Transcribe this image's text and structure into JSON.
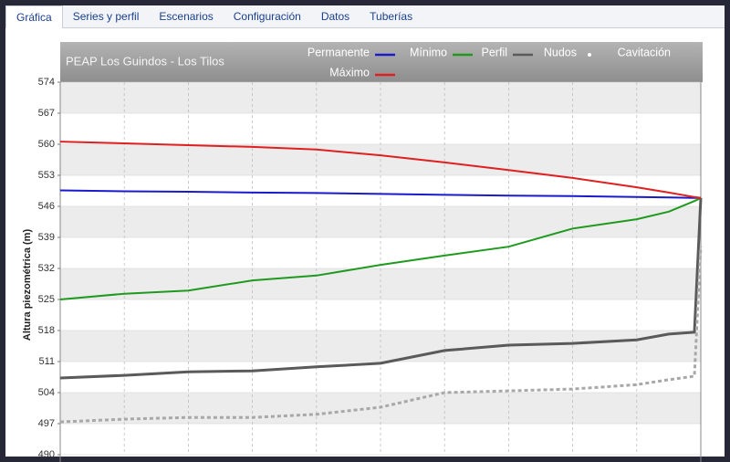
{
  "tabs": [
    "Gráfica",
    "Series y perfil",
    "Escenarios",
    "Configuración",
    "Datos",
    "Tuberías"
  ],
  "chart_data": {
    "type": "line",
    "title": "PEAP Los Guindos - Los Tilos",
    "y_label": "Altura piezométrica (m)",
    "x": [
      0,
      1,
      2,
      3,
      4,
      5,
      6,
      7,
      8,
      9,
      9.5,
      9.9,
      10
    ],
    "xlim": [
      0,
      10
    ],
    "xticks": [
      1,
      2,
      3,
      4,
      5,
      6,
      7,
      8,
      9
    ],
    "ylim": [
      490,
      574
    ],
    "yticks": [
      490,
      497,
      504,
      511,
      518,
      525,
      532,
      539,
      546,
      553,
      560,
      567,
      574
    ],
    "grid": true,
    "series": [
      {
        "name": "Permanente",
        "color": "#1a1acc",
        "values": [
          549.6,
          549.4,
          549.3,
          549.1,
          549.0,
          548.8,
          548.6,
          548.4,
          548.3,
          548.1,
          548.0,
          547.9,
          547.9
        ]
      },
      {
        "name": "Mínimo",
        "color": "#1f9a1f",
        "values": [
          525.0,
          526.3,
          527.0,
          529.3,
          530.4,
          532.8,
          534.9,
          536.9,
          541.0,
          543.1,
          544.8,
          547.2,
          547.9
        ]
      },
      {
        "name": "Perfil",
        "color": "#5a5a5a",
        "width": 3,
        "values": [
          507.3,
          507.9,
          508.7,
          508.9,
          509.8,
          510.6,
          513.5,
          514.7,
          515.1,
          515.9,
          517.2,
          517.6,
          547.9
        ]
      },
      {
        "name": "Nudos",
        "color": "#ffffff",
        "marker": "dot",
        "values": [
          null,
          null,
          null,
          null,
          null,
          null,
          null,
          null,
          null,
          null,
          null,
          null,
          null
        ]
      },
      {
        "name": "Cavitación",
        "color": "#a8a8a8",
        "width": 3,
        "dash": true,
        "values": [
          497.4,
          498.0,
          498.4,
          498.4,
          499.1,
          500.7,
          504.0,
          504.4,
          504.8,
          505.8,
          506.9,
          507.7,
          537.0
        ]
      },
      {
        "name": "Máximo",
        "color": "#e02020",
        "values": [
          560.6,
          560.2,
          559.8,
          559.4,
          558.8,
          557.5,
          555.9,
          554.2,
          552.4,
          550.3,
          549.1,
          548.1,
          547.9
        ]
      }
    ]
  }
}
